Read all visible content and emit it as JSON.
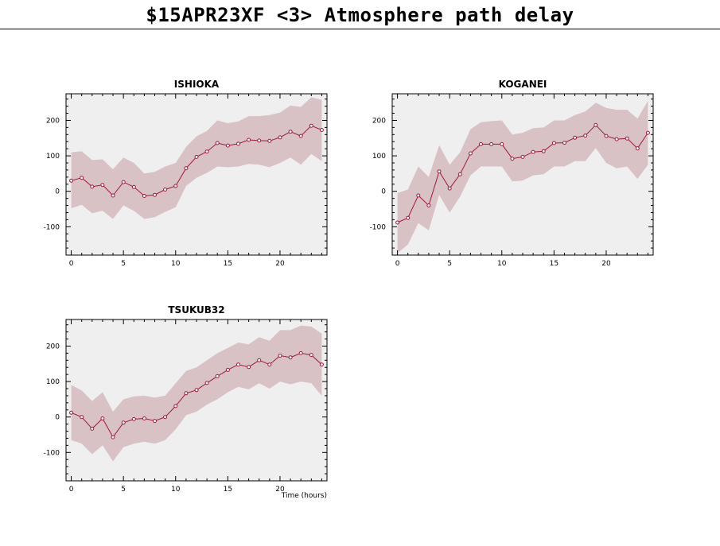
{
  "page": {
    "title": "$15APR23XF <3>  Atmosphere path delay"
  },
  "style": {
    "band_color": "#d8c2c6",
    "line_color": "#a0183c",
    "panel_bg": "#efefef"
  },
  "chart_data": [
    {
      "type": "line",
      "title": "ISHIOKA",
      "xlabel": "",
      "ylabel": "",
      "xlim": [
        -0.5,
        24.5
      ],
      "ylim": [
        -180,
        275
      ],
      "x_ticks": [
        0,
        5,
        10,
        15,
        20
      ],
      "y_ticks": [
        -100,
        0,
        100,
        200
      ],
      "grid": false,
      "x": [
        0,
        1,
        2,
        3,
        4,
        5,
        6,
        7,
        8,
        9,
        10,
        11,
        12,
        13,
        14,
        15,
        16,
        17,
        18,
        19,
        20,
        21,
        22,
        23,
        24
      ],
      "series": [
        {
          "values": [
            30,
            38,
            13,
            18,
            -12,
            26,
            12,
            -13,
            -10,
            5,
            15,
            65,
            97,
            112,
            136,
            129,
            134,
            145,
            143,
            142,
            152,
            168,
            156,
            185,
            173
          ],
          "upper": [
            110,
            113,
            88,
            90,
            62,
            95,
            80,
            50,
            55,
            70,
            80,
            125,
            155,
            170,
            200,
            192,
            197,
            212,
            212,
            215,
            222,
            242,
            238,
            265,
            258
          ],
          "lower": [
            -48,
            -38,
            -62,
            -55,
            -78,
            -40,
            -55,
            -78,
            -73,
            -58,
            -45,
            15,
            38,
            52,
            70,
            68,
            70,
            77,
            75,
            68,
            80,
            95,
            75,
            105,
            85
          ]
        }
      ]
    },
    {
      "type": "line",
      "title": "KOGANEI",
      "xlabel": "",
      "ylabel": "",
      "xlim": [
        -0.5,
        24.5
      ],
      "ylim": [
        -180,
        275
      ],
      "x_ticks": [
        0,
        5,
        10,
        15,
        20
      ],
      "y_ticks": [
        -100,
        0,
        100,
        200
      ],
      "grid": false,
      "x": [
        0,
        1,
        2,
        3,
        4,
        5,
        6,
        7,
        8,
        9,
        10,
        11,
        12,
        13,
        14,
        15,
        16,
        17,
        18,
        19,
        20,
        21,
        22,
        23,
        24
      ],
      "series": [
        {
          "values": [
            -88,
            -75,
            -12,
            -40,
            56,
            8,
            48,
            107,
            133,
            133,
            133,
            92,
            97,
            111,
            113,
            136,
            137,
            151,
            157,
            187,
            156,
            147,
            149,
            121,
            165
          ],
          "upper": [
            -5,
            5,
            70,
            40,
            130,
            75,
            110,
            175,
            195,
            198,
            200,
            160,
            165,
            178,
            180,
            200,
            200,
            215,
            225,
            250,
            235,
            230,
            230,
            205,
            255
          ],
          "lower": [
            -175,
            -150,
            -90,
            -110,
            -10,
            -60,
            -15,
            45,
            70,
            70,
            70,
            28,
            30,
            45,
            48,
            70,
            70,
            85,
            85,
            122,
            80,
            65,
            70,
            35,
            75
          ]
        }
      ]
    },
    {
      "type": "line",
      "title": "TSUKUB32",
      "xlabel": "Time (hours)",
      "ylabel": "",
      "xlim": [
        -0.5,
        24.5
      ],
      "ylim": [
        -180,
        275
      ],
      "x_ticks": [
        0,
        5,
        10,
        15,
        20
      ],
      "y_ticks": [
        -100,
        0,
        100,
        200
      ],
      "grid": false,
      "x": [
        0,
        1,
        2,
        3,
        4,
        5,
        6,
        7,
        8,
        9,
        10,
        11,
        12,
        13,
        14,
        15,
        16,
        17,
        18,
        19,
        20,
        21,
        22,
        23,
        24
      ],
      "series": [
        {
          "values": [
            12,
            0,
            -33,
            -4,
            -57,
            -16,
            -6,
            -4,
            -11,
            0,
            31,
            67,
            76,
            96,
            115,
            133,
            148,
            141,
            160,
            148,
            173,
            168,
            180,
            175,
            148
          ],
          "upper": [
            90,
            75,
            45,
            70,
            15,
            50,
            58,
            60,
            55,
            60,
            95,
            130,
            140,
            160,
            180,
            195,
            210,
            205,
            225,
            215,
            245,
            245,
            258,
            255,
            235
          ],
          "lower": [
            -65,
            -75,
            -105,
            -80,
            -125,
            -85,
            -75,
            -70,
            -75,
            -65,
            -35,
            5,
            15,
            35,
            50,
            70,
            85,
            78,
            95,
            80,
            100,
            92,
            100,
            95,
            60
          ]
        }
      ]
    }
  ]
}
